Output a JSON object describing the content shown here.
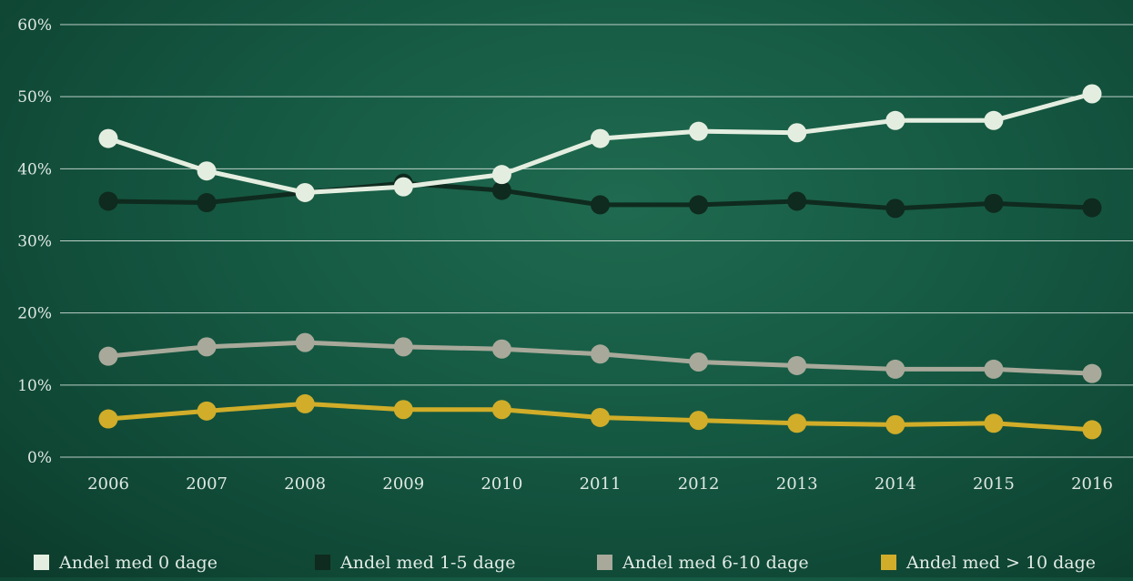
{
  "chart_data": {
    "type": "line",
    "title": "",
    "xlabel": "",
    "ylabel": "",
    "x": [
      "2006",
      "2007",
      "2008",
      "2009",
      "2010",
      "2011",
      "2012",
      "2013",
      "2014",
      "2015",
      "2016"
    ],
    "ylim": [
      0,
      60
    ],
    "yticks": [
      "0%",
      "10%",
      "20%",
      "30%",
      "40%",
      "50%",
      "60%"
    ],
    "grid": true,
    "legend_position": "bottom",
    "series": [
      {
        "name": "Andel med 0 dage",
        "color": "#e4eee0",
        "values": [
          44.2,
          39.7,
          36.7,
          37.5,
          39.2,
          44.2,
          45.2,
          45.0,
          46.7,
          46.7,
          50.4
        ]
      },
      {
        "name": "Andel med 1-5 dage",
        "color": "#0f2a1e",
        "values": [
          35.5,
          35.3,
          36.7,
          38.0,
          37.0,
          35.0,
          35.0,
          35.5,
          34.5,
          35.2,
          34.6
        ]
      },
      {
        "name": "Andel med 6-10 dage",
        "color": "#a8a99a",
        "values": [
          14.0,
          15.3,
          15.9,
          15.3,
          15.0,
          14.3,
          13.2,
          12.7,
          12.2,
          12.2,
          11.6
        ]
      },
      {
        "name": "Andel med > 10 dage",
        "color": "#d1ad29",
        "values": [
          5.3,
          6.4,
          7.4,
          6.6,
          6.6,
          5.5,
          5.1,
          4.7,
          4.5,
          4.7,
          3.8
        ]
      }
    ]
  }
}
